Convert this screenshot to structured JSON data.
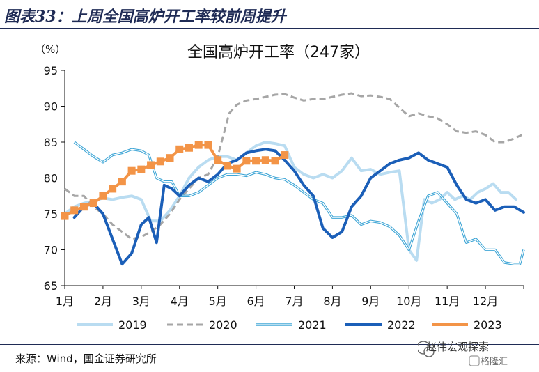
{
  "figure_title": "图表33：上周全国高炉开工率较前周提升",
  "source_note": "来源：Wind，国金证券研究所",
  "watermark": {
    "label": "赵伟宏观探索",
    "brand": "格隆汇"
  },
  "chart_data": {
    "type": "line",
    "title": "全国高炉开工率（247家）",
    "unit_label": "（%）",
    "ylim": [
      65,
      95
    ],
    "yticks": [
      65,
      70,
      75,
      80,
      85,
      90,
      95
    ],
    "xlim": [
      1,
      13
    ],
    "xticks": [
      {
        "x": 1,
        "label": "1月"
      },
      {
        "x": 2,
        "label": "2月"
      },
      {
        "x": 3,
        "label": "3月"
      },
      {
        "x": 4,
        "label": "4月"
      },
      {
        "x": 5,
        "label": "5月"
      },
      {
        "x": 6,
        "label": "6月"
      },
      {
        "x": 7,
        "label": "7月"
      },
      {
        "x": 8,
        "label": "8月"
      },
      {
        "x": 9,
        "label": "9月"
      },
      {
        "x": 10,
        "label": "10月"
      },
      {
        "x": 11,
        "label": "11月"
      },
      {
        "x": 12,
        "label": "12月"
      }
    ],
    "grid": false,
    "legend_position": "bottom",
    "series": [
      {
        "name": "2019",
        "color": "#b9dcf1",
        "style": "solid",
        "width": 4,
        "points": [
          [
            1.0,
            75.0
          ],
          [
            1.25,
            76.0
          ],
          [
            1.5,
            76.5
          ],
          [
            1.75,
            76.8
          ],
          [
            2.0,
            77.2
          ],
          [
            2.25,
            77.0
          ],
          [
            2.5,
            77.3
          ],
          [
            2.75,
            77.5
          ],
          [
            3.0,
            77.0
          ],
          [
            3.25,
            74.0
          ],
          [
            3.5,
            74.0
          ],
          [
            3.75,
            75.5
          ],
          [
            4.0,
            77.5
          ],
          [
            4.25,
            80.0
          ],
          [
            4.5,
            81.5
          ],
          [
            4.75,
            82.5
          ],
          [
            5.0,
            83.0
          ],
          [
            5.25,
            83.0
          ],
          [
            5.5,
            82.5
          ],
          [
            5.75,
            83.5
          ],
          [
            6.0,
            84.5
          ],
          [
            6.25,
            85.0
          ],
          [
            6.5,
            84.8
          ],
          [
            6.75,
            84.5
          ],
          [
            7.0,
            81.5
          ],
          [
            7.25,
            80.5
          ],
          [
            7.5,
            80.0
          ],
          [
            7.75,
            80.5
          ],
          [
            8.0,
            80.0
          ],
          [
            8.25,
            81.0
          ],
          [
            8.5,
            82.8
          ],
          [
            8.75,
            81.0
          ],
          [
            9.0,
            81.2
          ],
          [
            9.25,
            80.5
          ],
          [
            9.5,
            80.8
          ],
          [
            9.75,
            81.0
          ],
          [
            10.0,
            70.0
          ],
          [
            10.2,
            68.5
          ],
          [
            10.4,
            77.0
          ],
          [
            10.6,
            76.5
          ],
          [
            10.8,
            77.0
          ],
          [
            11.0,
            78.0
          ],
          [
            11.2,
            77.0
          ],
          [
            11.4,
            77.5
          ],
          [
            11.6,
            77.0
          ],
          [
            11.8,
            78.0
          ],
          [
            12.0,
            78.5
          ],
          [
            12.2,
            79.2
          ],
          [
            12.4,
            78.0
          ],
          [
            12.6,
            78.0
          ],
          [
            12.8,
            77.0
          ]
        ]
      },
      {
        "name": "2020",
        "color": "#a6a6a6",
        "style": "dashed",
        "width": 3,
        "points": [
          [
            1.0,
            78.5
          ],
          [
            1.25,
            77.5
          ],
          [
            1.5,
            77.5
          ],
          [
            1.75,
            76.0
          ],
          [
            2.0,
            75.0
          ],
          [
            2.25,
            73.5
          ],
          [
            2.5,
            72.5
          ],
          [
            2.75,
            71.5
          ],
          [
            3.0,
            71.8
          ],
          [
            3.25,
            72.5
          ],
          [
            3.5,
            73.5
          ],
          [
            3.75,
            75.0
          ],
          [
            4.0,
            77.0
          ],
          [
            4.25,
            78.5
          ],
          [
            4.5,
            80.0
          ],
          [
            4.75,
            80.5
          ],
          [
            5.0,
            83.0
          ],
          [
            5.15,
            86.0
          ],
          [
            5.3,
            89.0
          ],
          [
            5.5,
            90.2
          ],
          [
            5.75,
            90.8
          ],
          [
            6.0,
            91.0
          ],
          [
            6.25,
            91.3
          ],
          [
            6.5,
            91.6
          ],
          [
            6.75,
            91.7
          ],
          [
            7.0,
            91.2
          ],
          [
            7.25,
            90.8
          ],
          [
            7.5,
            91.0
          ],
          [
            7.75,
            91.0
          ],
          [
            8.0,
            91.3
          ],
          [
            8.25,
            91.6
          ],
          [
            8.5,
            91.8
          ],
          [
            8.75,
            91.4
          ],
          [
            9.0,
            91.5
          ],
          [
            9.25,
            91.3
          ],
          [
            9.5,
            91.0
          ],
          [
            9.75,
            89.8
          ],
          [
            10.0,
            88.6
          ],
          [
            10.25,
            89.0
          ],
          [
            10.5,
            88.6
          ],
          [
            10.75,
            88.3
          ],
          [
            11.0,
            87.5
          ],
          [
            11.25,
            86.5
          ],
          [
            11.5,
            86.3
          ],
          [
            11.75,
            86.5
          ],
          [
            12.0,
            86.0
          ],
          [
            12.25,
            85.0
          ],
          [
            12.5,
            85.0
          ],
          [
            12.75,
            85.5
          ],
          [
            12.95,
            86.0
          ]
        ]
      },
      {
        "name": "2021",
        "color": "#3fa6d6",
        "style": "double",
        "width": 3.5,
        "points": [
          [
            1.25,
            85.0
          ],
          [
            1.5,
            84.0
          ],
          [
            1.75,
            83.0
          ],
          [
            2.0,
            82.2
          ],
          [
            2.25,
            83.2
          ],
          [
            2.5,
            83.5
          ],
          [
            2.75,
            84.0
          ],
          [
            3.0,
            83.8
          ],
          [
            3.2,
            83.2
          ],
          [
            3.4,
            80.0
          ],
          [
            3.6,
            79.5
          ],
          [
            3.8,
            79.5
          ],
          [
            4.0,
            77.5
          ],
          [
            4.25,
            77.5
          ],
          [
            4.5,
            78.0
          ],
          [
            4.75,
            79.0
          ],
          [
            5.0,
            80.0
          ],
          [
            5.25,
            80.5
          ],
          [
            5.5,
            80.5
          ],
          [
            5.75,
            80.3
          ],
          [
            6.0,
            80.8
          ],
          [
            6.25,
            80.5
          ],
          [
            6.5,
            80.0
          ],
          [
            6.75,
            79.8
          ],
          [
            7.0,
            79.0
          ],
          [
            7.25,
            78.0
          ],
          [
            7.5,
            77.0
          ],
          [
            7.75,
            76.5
          ],
          [
            8.0,
            74.5
          ],
          [
            8.25,
            74.5
          ],
          [
            8.5,
            74.8
          ],
          [
            8.75,
            73.5
          ],
          [
            9.0,
            74.0
          ],
          [
            9.25,
            73.8
          ],
          [
            9.5,
            73.2
          ],
          [
            9.75,
            72.0
          ],
          [
            10.0,
            70.0
          ],
          [
            10.25,
            74.0
          ],
          [
            10.5,
            77.5
          ],
          [
            10.75,
            78.0
          ],
          [
            11.0,
            76.5
          ],
          [
            11.25,
            75.0
          ],
          [
            11.5,
            71.0
          ],
          [
            11.75,
            71.5
          ],
          [
            12.0,
            70.0
          ],
          [
            12.25,
            70.0
          ],
          [
            12.5,
            68.2
          ],
          [
            12.75,
            68.0
          ],
          [
            12.9,
            68.0
          ],
          [
            13.0,
            70.0
          ]
        ]
      },
      {
        "name": "2022",
        "color": "#1b5fb8",
        "style": "solid",
        "width": 4,
        "points": [
          [
            1.25,
            74.5
          ],
          [
            1.5,
            76.0
          ],
          [
            1.75,
            76.5
          ],
          [
            2.0,
            75.0
          ],
          [
            2.25,
            71.5
          ],
          [
            2.5,
            68.0
          ],
          [
            2.75,
            69.5
          ],
          [
            3.0,
            73.5
          ],
          [
            3.2,
            74.5
          ],
          [
            3.4,
            71.0
          ],
          [
            3.6,
            79.0
          ],
          [
            3.8,
            78.5
          ],
          [
            4.0,
            77.5
          ],
          [
            4.25,
            79.0
          ],
          [
            4.5,
            80.0
          ],
          [
            4.75,
            79.5
          ],
          [
            5.0,
            80.5
          ],
          [
            5.25,
            82.0
          ],
          [
            5.5,
            82.5
          ],
          [
            5.75,
            83.5
          ],
          [
            6.0,
            83.8
          ],
          [
            6.25,
            84.0
          ],
          [
            6.5,
            83.8
          ],
          [
            6.75,
            82.5
          ],
          [
            7.0,
            81.0
          ],
          [
            7.25,
            79.0
          ],
          [
            7.5,
            77.5
          ],
          [
            7.75,
            73.0
          ],
          [
            8.0,
            71.7
          ],
          [
            8.25,
            72.5
          ],
          [
            8.5,
            76.0
          ],
          [
            8.75,
            77.5
          ],
          [
            9.0,
            80.0
          ],
          [
            9.25,
            81.0
          ],
          [
            9.5,
            82.0
          ],
          [
            9.75,
            82.5
          ],
          [
            10.0,
            82.8
          ],
          [
            10.25,
            83.5
          ],
          [
            10.5,
            82.5
          ],
          [
            10.75,
            82.0
          ],
          [
            11.0,
            81.5
          ],
          [
            11.25,
            79.0
          ],
          [
            11.5,
            77.0
          ],
          [
            11.75,
            76.5
          ],
          [
            12.0,
            77.0
          ],
          [
            12.25,
            75.5
          ],
          [
            12.5,
            76.0
          ],
          [
            12.75,
            76.0
          ],
          [
            13.0,
            75.2
          ]
        ]
      },
      {
        "name": "2023",
        "color": "#f39447",
        "style": "marker",
        "width": 4,
        "points": [
          [
            1.0,
            74.7
          ],
          [
            1.25,
            75.5
          ],
          [
            1.5,
            76.0
          ],
          [
            1.75,
            76.5
          ],
          [
            2.0,
            77.5
          ],
          [
            2.25,
            78.5
          ],
          [
            2.5,
            79.5
          ],
          [
            2.75,
            81.0
          ],
          [
            3.0,
            81.2
          ],
          [
            3.25,
            81.8
          ],
          [
            3.5,
            82.3
          ],
          [
            3.75,
            82.8
          ],
          [
            4.0,
            84.0
          ],
          [
            4.25,
            84.2
          ],
          [
            4.5,
            84.6
          ],
          [
            4.75,
            84.6
          ],
          [
            5.0,
            82.5
          ],
          [
            5.25,
            81.7
          ],
          [
            5.5,
            81.3
          ],
          [
            5.75,
            82.4
          ],
          [
            6.0,
            82.4
          ],
          [
            6.25,
            82.5
          ],
          [
            6.5,
            82.4
          ],
          [
            6.75,
            83.2
          ]
        ]
      }
    ]
  }
}
